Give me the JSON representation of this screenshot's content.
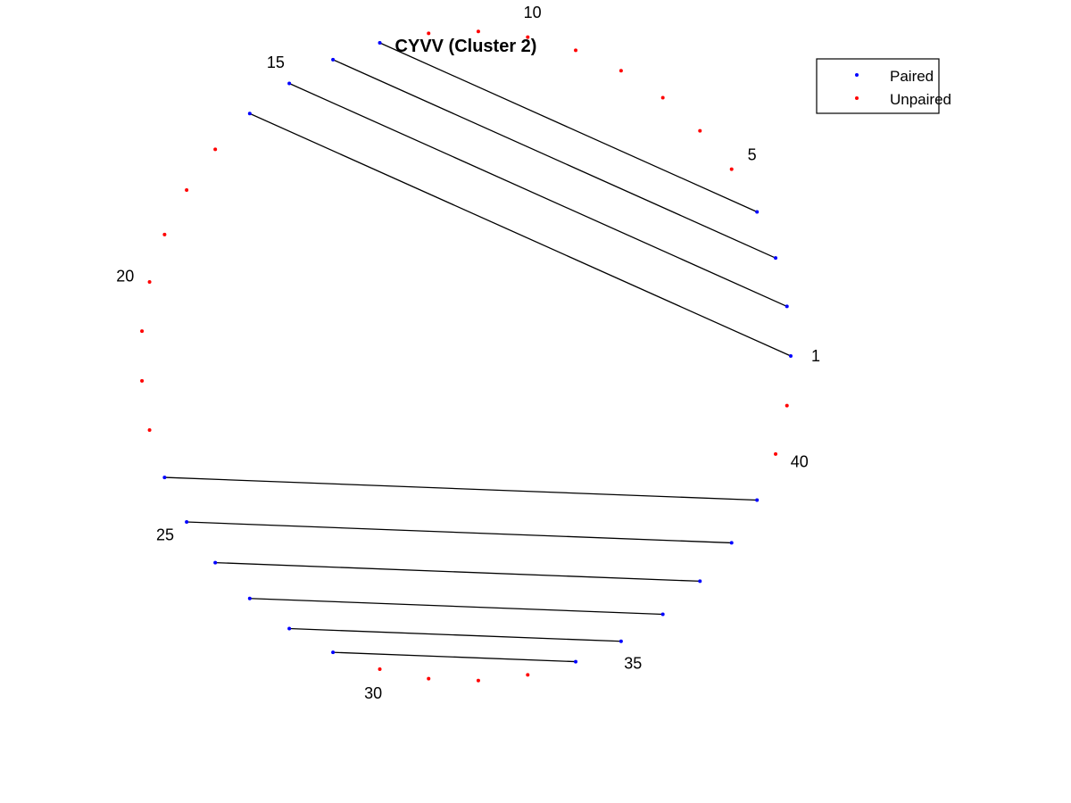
{
  "chart_data": {
    "type": "scatter",
    "title": "CYVV (Cluster 2)",
    "n_positions": 41,
    "position_labels": [
      1,
      5,
      10,
      15,
      20,
      25,
      30,
      35,
      40
    ],
    "pairs": [
      [
        1,
        16
      ],
      [
        2,
        15
      ],
      [
        3,
        14
      ],
      [
        4,
        13
      ],
      [
        24,
        39
      ],
      [
        25,
        38
      ],
      [
        26,
        37
      ],
      [
        27,
        36
      ],
      [
        28,
        35
      ],
      [
        29,
        34
      ]
    ],
    "series": [
      {
        "name": "Paired",
        "color": "#0000ff",
        "positions": [
          1,
          2,
          3,
          4,
          13,
          14,
          15,
          16,
          24,
          25,
          26,
          27,
          28,
          29,
          34,
          35,
          36,
          37,
          38,
          39
        ]
      },
      {
        "name": "Unpaired",
        "color": "#ff0000",
        "positions": [
          5,
          6,
          7,
          8,
          9,
          10,
          11,
          12,
          17,
          18,
          19,
          20,
          21,
          22,
          23,
          30,
          31,
          32,
          33,
          40,
          41
        ]
      }
    ],
    "line_color": "#000000",
    "legend_position": "top-right"
  }
}
